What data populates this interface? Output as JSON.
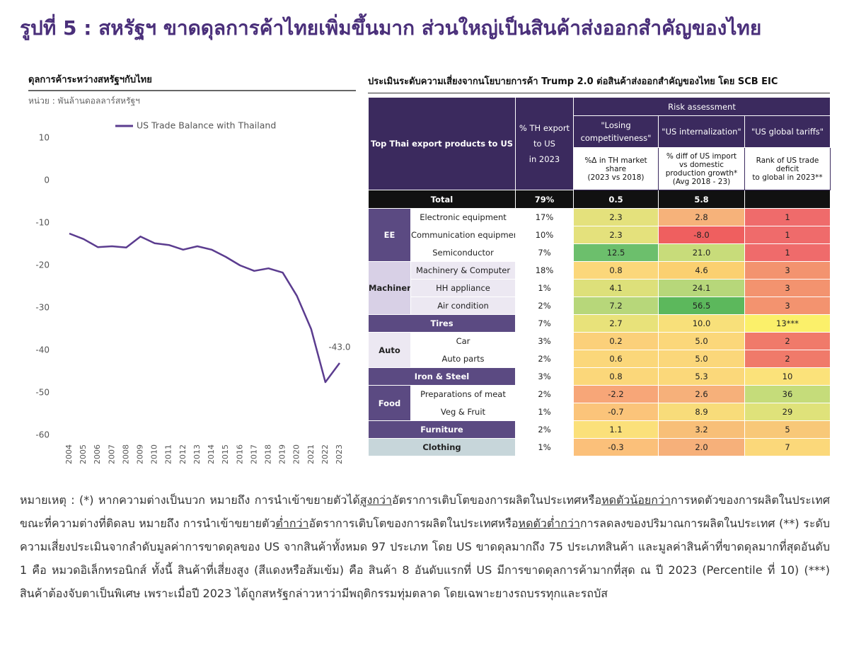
{
  "title": "รูปที่ 5 : สหรัฐฯ ขาดดุลการค้าไทยเพิ่มขึ้นมาก ส่วนใหญ่เป็นสินค้าส่งออกสำคัญของไทย",
  "chart_data": {
    "type": "line",
    "title": "ดุลการค้าระหว่างสหรัฐฯกับไทย",
    "subtitle": "หน่วย : พันล้านดอลลาร์สหรัฐฯ",
    "categories": [
      "2004",
      "2005",
      "2006",
      "2007",
      "2008",
      "2009",
      "2010",
      "2011",
      "2012",
      "2013",
      "2014",
      "2015",
      "2016",
      "2017",
      "2018",
      "2019",
      "2020",
      "2021",
      "2022",
      "2023"
    ],
    "series": [
      {
        "name": "US Trade Balance with Thailand",
        "color": "#5b3c8f",
        "values": [
          -12.5,
          -13.8,
          -15.7,
          -15.5,
          -15.8,
          -13.2,
          -14.8,
          -15.2,
          -16.3,
          -15.5,
          -16.3,
          -18,
          -20,
          -21.3,
          -20.7,
          -21.7,
          -27.2,
          -35,
          -47.5,
          -43
        ],
        "value_labels": [
          null,
          null,
          null,
          null,
          null,
          null,
          null,
          null,
          null,
          null,
          null,
          null,
          null,
          null,
          null,
          null,
          null,
          null,
          null,
          "-43.0"
        ]
      }
    ],
    "ylim": [
      -60,
      10
    ],
    "yticks": [
      10,
      0,
      -10,
      -20,
      -30,
      -40,
      -50,
      -60
    ],
    "grid": false,
    "legend": "top"
  },
  "table": {
    "title": "ประเมินระดับความเสี่ยงจากนโยบายการค้า Trump 2.0 ต่อสินค้าส่งออกสำคัญของไทย โดย SCB EIC",
    "header": {
      "product": "Top Thai export products to US",
      "share": [
        "% TH export",
        "to US",
        "in 2023"
      ],
      "risk": "Risk assessment",
      "dimensions": [
        {
          "name": [
            "\"Losing",
            "competitiveness\""
          ],
          "measure": [
            "%Δ in TH market",
            "share",
            "(2023 vs 2018)"
          ]
        },
        {
          "name": [
            "\"US internalization\""
          ],
          "measure": [
            "% diff of US import",
            "vs domestic",
            "production growth*",
            "(Avg 2018 - 23)"
          ]
        },
        {
          "name": [
            "\"US global tariffs\""
          ],
          "measure": [
            "Rank of US trade",
            "deficit",
            "to global in 2023**"
          ]
        }
      ]
    },
    "total": {
      "label": "Total",
      "cells": [
        "79%",
        "0.5",
        "5.8"
      ]
    },
    "groups": [
      {
        "name": "EE",
        "color": "#5b4a82",
        "text_color": "#ffffff",
        "product_color": "#ffffff",
        "rows": [
          {
            "product": "Electronic equipment",
            "cells": [
              "17%",
              "2.3",
              "2.8",
              "1"
            ],
            "colors": [
              "#e4e17c",
              "#f6b27a",
              "#ef6b6b"
            ]
          },
          {
            "product": "Communication equipment",
            "cells": [
              "10%",
              "2.3",
              "-8.0",
              "1"
            ],
            "colors": [
              "#e4e17c",
              "#ef5f5f",
              "#ef6b6b"
            ]
          },
          {
            "product": "Semiconductor",
            "cells": [
              "7%",
              "12.5",
              "21.0",
              "1"
            ],
            "colors": [
              "#6cbf6c",
              "#c8dc7a",
              "#ef6b6b"
            ]
          }
        ]
      },
      {
        "name": "Machinery",
        "color": "#d8d0e6",
        "text_color": "#222222",
        "product_color": "#ece8f2",
        "rows": [
          {
            "product": "Machinery & Computer",
            "cells": [
              "18%",
              "0.8",
              "4.6",
              "3"
            ],
            "colors": [
              "#fbd77a",
              "#fbd070",
              "#f3936f"
            ]
          },
          {
            "product": "HH appliance",
            "cells": [
              "1%",
              "4.1",
              "24.1",
              "3"
            ],
            "colors": [
              "#dde07a",
              "#b7d77a",
              "#f3936f"
            ]
          },
          {
            "product": "Air condition",
            "cells": [
              "2%",
              "7.2",
              "56.5",
              "3"
            ],
            "colors": [
              "#b7d77a",
              "#5cb85c",
              "#f3936f"
            ]
          }
        ]
      },
      {
        "name": "Tires",
        "color": "#5b4a82",
        "text_color": "#ffffff",
        "rows": [
          {
            "cells": [
              "7%",
              "2.7",
              "10.0",
              "13***"
            ],
            "colors": [
              "#e8e27a",
              "#f8e07a",
              "#fbf06a"
            ]
          }
        ]
      },
      {
        "name": "Auto",
        "color": "#ece8f2",
        "text_color": "#222222",
        "product_color": "#ffffff",
        "rows": [
          {
            "product": "Car",
            "cells": [
              "3%",
              "0.2",
              "5.0",
              "2"
            ],
            "colors": [
              "#fbd07a",
              "#fbd77a",
              "#f07a6a"
            ]
          },
          {
            "product": "Auto parts",
            "cells": [
              "2%",
              "0.6",
              "5.0",
              "2"
            ],
            "colors": [
              "#fbd77a",
              "#fbd77a",
              "#f07a6a"
            ]
          }
        ]
      },
      {
        "name": "Iron & Steel",
        "color": "#5b4a82",
        "text_color": "#ffffff",
        "rows": [
          {
            "cells": [
              "3%",
              "0.8",
              "5.3",
              "10"
            ],
            "colors": [
              "#fbd77a",
              "#fbd87a",
              "#fbe27a"
            ]
          }
        ]
      },
      {
        "name": "Food",
        "color": "#5b4a82",
        "text_color": "#ffffff",
        "product_color": "#ffffff",
        "rows": [
          {
            "product": "Preparations of meat",
            "cells": [
              "2%",
              "-2.2",
              "2.6",
              "36"
            ],
            "colors": [
              "#f7a678",
              "#f6b07a",
              "#c5dc7a"
            ]
          },
          {
            "product": "Veg & Fruit",
            "cells": [
              "1%",
              "-0.7",
              "8.9",
              "29"
            ],
            "colors": [
              "#fbc47a",
              "#f8dc7a",
              "#dfe27a"
            ]
          }
        ]
      },
      {
        "name": "Furniture",
        "color": "#5b4a82",
        "text_color": "#ffffff",
        "rows": [
          {
            "cells": [
              "2%",
              "1.1",
              "3.2",
              "5"
            ],
            "colors": [
              "#fbe07a",
              "#f8bf78",
              "#f8c878"
            ]
          }
        ]
      },
      {
        "name": "Clothing",
        "color": "#c7d6da",
        "text_color": "#222222",
        "rows": [
          {
            "cells": [
              "1%",
              "-0.3",
              "2.0",
              "7"
            ],
            "colors": [
              "#fbc07a",
              "#f6b07a",
              "#fbd87a"
            ]
          }
        ]
      }
    ]
  },
  "notes": {
    "segments": [
      {
        "text": "หมายเหตุ : (*) หากความต่างเป็นบวก หมายถึง การนำเข้าขยายตัวได้"
      },
      {
        "text": "สูงกว่า",
        "underline": true
      },
      {
        "text": "อัตราการเติบโตของการผลิตในประเทศหรือ"
      },
      {
        "text": "หดตัวน้อยกว่า",
        "underline": true
      },
      {
        "text": "การหดตัวของการผลิตในประเทศ ขณะที่ความต่างที่ติดลบ หมายถึง การนำเข้าขยายตัว"
      },
      {
        "text": "ต่ำกว่า",
        "underline": true
      },
      {
        "text": "อัตราการเติบโตของการผลิตในประเทศหรือ"
      },
      {
        "text": "หดตัวต่ำกว่า",
        "underline": true
      },
      {
        "text": "การลดลงของปริมาณการผลิตในประเทศ (**) ระดับความเสี่ยงประเมินจากลำดับมูลค่าการขาดดุลของ US จากสินค้าทั้งหมด 97 ประเภท โดย US ขาดดุลมากถึง 75 ประเภทสินค้า และมูลค่าสินค้าที่ขาดดุลมากที่สุดอันดับ 1 คือ หมวดอิเล็กทรอนิกส์ ทั้งนี้ สินค้าที่เสี่ยงสูง (สีแดงหรือส้มเข้ม) คือ สินค้า 8 อันดับแรกที่ US มีการขาดดุลการค้ามากที่สุด ณ ปี 2023 (Percentile ที่ 10) (***) สินค้าต้องจับตาเป็นพิเศษ เพราะเมื่อปี 2023 ได้ถูกสหรัฐกล่าวหาว่ามีพฤติกรรมทุ่มตลาด โดยเฉพาะยางรถบรรทุกและรถบัส"
      }
    ]
  }
}
